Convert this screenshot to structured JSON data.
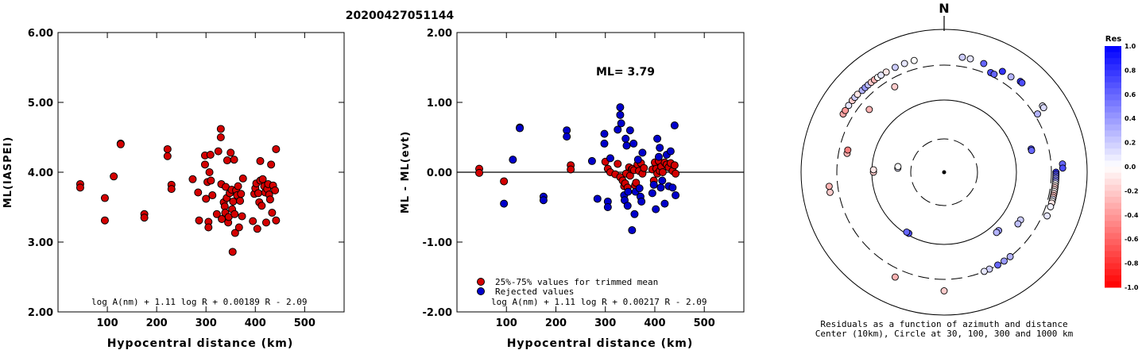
{
  "title": "20200427051144",
  "chart_data": [
    {
      "type": "scatter",
      "xlabel": "Hypocentral distance (km)",
      "ylabel": "ML(IASPEI)",
      "xlim": [
        0,
        580
      ],
      "ylim": [
        2.0,
        6.0
      ],
      "xticks": [
        "100",
        "200",
        "300",
        "400",
        "500"
      ],
      "yticks": [
        "2.00",
        "3.00",
        "4.00",
        "5.00",
        "6.00"
      ],
      "formula": "log A(nm) + 1.11 log R + 0.00189 R - 2.09",
      "series": [
        {
          "color": "#d40000",
          "points": [
            [
              45,
              3.83
            ],
            [
              45,
              3.78
            ],
            [
              95,
              3.63
            ],
            [
              95,
              3.31
            ],
            [
              113,
              3.94
            ],
            [
              127,
              4.41
            ],
            [
              127,
              4.4
            ],
            [
              175,
              3.4
            ],
            [
              175,
              3.35
            ],
            [
              222,
              4.33
            ],
            [
              222,
              4.23
            ],
            [
              230,
              3.82
            ],
            [
              230,
              3.76
            ],
            [
              273,
              3.9
            ],
            [
              284,
              3.71
            ],
            [
              286,
              3.31
            ],
            [
              298,
              4.24
            ],
            [
              298,
              4.11
            ],
            [
              300,
              3.62
            ],
            [
              303,
              3.86
            ],
            [
              305,
              3.29
            ],
            [
              305,
              3.21
            ],
            [
              307,
              4.0
            ],
            [
              309,
              4.25
            ],
            [
              310,
              3.88
            ],
            [
              313,
              3.67
            ],
            [
              322,
              3.4
            ],
            [
              325,
              4.3
            ],
            [
              330,
              4.62
            ],
            [
              330,
              4.5
            ],
            [
              331,
              3.83
            ],
            [
              332,
              3.33
            ],
            [
              336,
              3.57
            ],
            [
              338,
              3.51
            ],
            [
              339,
              3.42
            ],
            [
              340,
              3.79
            ],
            [
              342,
              3.63
            ],
            [
              343,
              4.17
            ],
            [
              345,
              3.28
            ],
            [
              346,
              3.36
            ],
            [
              348,
              3.7
            ],
            [
              350,
              4.28
            ],
            [
              352,
              3.75
            ],
            [
              353,
              3.47
            ],
            [
              354,
              2.86
            ],
            [
              355,
              3.58
            ],
            [
              357,
              4.18
            ],
            [
              358,
              3.4
            ],
            [
              359,
              3.13
            ],
            [
              361,
              3.74
            ],
            [
              363,
              3.67
            ],
            [
              365,
              3.8
            ],
            [
              367,
              3.21
            ],
            [
              369,
              3.59
            ],
            [
              371,
              3.69
            ],
            [
              373,
              3.37
            ],
            [
              375,
              3.91
            ],
            [
              395,
              3.3
            ],
            [
              398,
              3.69
            ],
            [
              400,
              3.77
            ],
            [
              402,
              3.84
            ],
            [
              404,
              3.19
            ],
            [
              406,
              3.7
            ],
            [
              408,
              3.57
            ],
            [
              410,
              3.88
            ],
            [
              410,
              4.16
            ],
            [
              413,
              3.52
            ],
            [
              415,
              3.9
            ],
            [
              418,
              3.8
            ],
            [
              420,
              3.71
            ],
            [
              422,
              3.28
            ],
            [
              424,
              3.76
            ],
            [
              426,
              3.83
            ],
            [
              428,
              3.68
            ],
            [
              430,
              3.61
            ],
            [
              432,
              4.11
            ],
            [
              434,
              3.42
            ],
            [
              436,
              3.81
            ],
            [
              440,
              3.74
            ],
            [
              442,
              4.33
            ],
            [
              442,
              3.31
            ]
          ]
        }
      ]
    },
    {
      "type": "scatter",
      "xlabel": "Hypocentral distance (km)",
      "ylabel": "ML - ML(evt)",
      "xlim": [
        0,
        580
      ],
      "ylim": [
        -2.0,
        2.0
      ],
      "xticks": [
        "100",
        "200",
        "300",
        "400",
        "500"
      ],
      "yticks": [
        "-2.00",
        "-1.00",
        "0.00",
        "1.00",
        "2.00"
      ],
      "annotation": "ML= 3.79",
      "formula": "log A(nm) + 1.11 log R + 0.00217 R - 2.09",
      "legend": [
        {
          "label": "25%-75% values for trimmed mean",
          "color": "#d40000"
        },
        {
          "label": "Rejected values",
          "color": "#0000cc"
        }
      ],
      "series": [
        {
          "color": "#d40000",
          "points": [
            [
              45,
              0.05
            ],
            [
              45,
              -0.01
            ],
            [
              95,
              -0.13
            ],
            [
              230,
              0.1
            ],
            [
              230,
              0.04
            ],
            [
              300,
              0.15
            ],
            [
              305,
              0.05
            ],
            [
              310,
              0.0
            ],
            [
              320,
              -0.03
            ],
            [
              325,
              0.12
            ],
            [
              330,
              -0.07
            ],
            [
              335,
              -0.12
            ],
            [
              338,
              -0.2
            ],
            [
              340,
              -0.16
            ],
            [
              342,
              -0.02
            ],
            [
              345,
              -0.22
            ],
            [
              348,
              0.07
            ],
            [
              350,
              -0.05
            ],
            [
              353,
              0.04
            ],
            [
              355,
              0.05
            ],
            [
              358,
              0.03
            ],
            [
              360,
              -0.19
            ],
            [
              362,
              -0.15
            ],
            [
              365,
              0.11
            ],
            [
              368,
              0.02
            ],
            [
              372,
              0.13
            ],
            [
              375,
              -0.02
            ],
            [
              378,
              0.06
            ],
            [
              395,
              0.04
            ],
            [
              398,
              -0.12
            ],
            [
              400,
              0.14
            ],
            [
              403,
              0.05
            ],
            [
              405,
              -0.02
            ],
            [
              408,
              0.16
            ],
            [
              410,
              0.02
            ],
            [
              413,
              0.08
            ],
            [
              416,
              0.0
            ],
            [
              420,
              0.14
            ],
            [
              424,
              0.11
            ],
            [
              428,
              0.07
            ],
            [
              432,
              0.13
            ],
            [
              436,
              0.02
            ],
            [
              440,
              0.1
            ],
            [
              442,
              -0.02
            ]
          ]
        },
        {
          "color": "#0000cc",
          "points": [
            [
              95,
              -0.45
            ],
            [
              113,
              0.18
            ],
            [
              127,
              0.64
            ],
            [
              127,
              0.63
            ],
            [
              175,
              -0.35
            ],
            [
              175,
              -0.4
            ],
            [
              222,
              0.6
            ],
            [
              222,
              0.51
            ],
            [
              273,
              0.16
            ],
            [
              284,
              -0.38
            ],
            [
              298,
              0.55
            ],
            [
              298,
              0.41
            ],
            [
              305,
              -0.42
            ],
            [
              305,
              -0.5
            ],
            [
              310,
              0.2
            ],
            [
              325,
              0.61
            ],
            [
              330,
              0.93
            ],
            [
              330,
              0.82
            ],
            [
              332,
              0.7
            ],
            [
              338,
              -0.33
            ],
            [
              339,
              -0.4
            ],
            [
              341,
              0.48
            ],
            [
              343,
              0.38
            ],
            [
              345,
              -0.48
            ],
            [
              346,
              -0.28
            ],
            [
              350,
              0.6
            ],
            [
              354,
              -0.83
            ],
            [
              357,
              0.41
            ],
            [
              359,
              -0.6
            ],
            [
              361,
              -0.28
            ],
            [
              366,
              0.18
            ],
            [
              369,
              -0.23
            ],
            [
              371,
              -0.35
            ],
            [
              373,
              -0.42
            ],
            [
              375,
              0.28
            ],
            [
              395,
              -0.3
            ],
            [
              398,
              -0.18
            ],
            [
              402,
              -0.53
            ],
            [
              405,
              0.48
            ],
            [
              408,
              0.22
            ],
            [
              410,
              0.35
            ],
            [
              412,
              -0.22
            ],
            [
              415,
              -0.12
            ],
            [
              420,
              -0.45
            ],
            [
              424,
              0.25
            ],
            [
              428,
              -0.2
            ],
            [
              432,
              0.3
            ],
            [
              436,
              -0.22
            ],
            [
              440,
              0.67
            ],
            [
              442,
              -0.33
            ]
          ]
        }
      ]
    },
    {
      "type": "scatter",
      "subtype": "polar",
      "north_label": "N",
      "caption": [
        "Residuals as a function of azimuth and distance",
        "Center (10km), Circle at 30, 100, 300 and 1000 km"
      ],
      "colorbar": {
        "title": "Res",
        "ticks": [
          "1.0",
          "0.8",
          "0.6",
          "0.4",
          "0.2",
          "0.0",
          "-0.2",
          "-0.4",
          "-0.6",
          "-0.8",
          "-1.0"
        ],
        "range": [
          -1.0,
          1.0
        ]
      },
      "rings_km": [
        30,
        100,
        300,
        1000
      ],
      "points": [
        [
          25,
          330,
          0.7
        ],
        [
          27,
          330,
          0.6
        ],
        [
          40,
          440,
          0.8
        ],
        [
          41,
          440,
          0.7
        ],
        [
          56,
          440,
          0.1
        ],
        [
          57,
          440,
          0.15
        ],
        [
          58,
          330,
          0.3
        ],
        [
          75,
          175,
          0.7
        ],
        [
          76,
          175,
          0.6
        ],
        [
          86,
          440,
          0.6
        ],
        [
          88,
          440,
          0.7
        ],
        [
          90,
          350,
          0.8
        ],
        [
          91,
          350,
          0.7
        ],
        [
          92,
          350,
          0.6
        ],
        [
          93,
          350,
          0.4
        ],
        [
          94,
          350,
          0.5
        ],
        [
          95,
          350,
          0.3
        ],
        [
          96,
          350,
          0.0
        ],
        [
          97,
          350,
          -0.1
        ],
        [
          98,
          350,
          -0.2
        ],
        [
          99,
          350,
          -0.1
        ],
        [
          100,
          350,
          0.0
        ],
        [
          101,
          350,
          -0.15
        ],
        [
          102,
          350,
          -0.25
        ],
        [
          103,
          350,
          -0.2
        ],
        [
          104,
          350,
          0.1
        ],
        [
          105,
          350,
          0.0
        ],
        [
          106,
          350,
          -0.1
        ],
        [
          108,
          350,
          0.05
        ],
        [
          113,
          350,
          0.1
        ],
        [
          122,
          175,
          0.2
        ],
        [
          125,
          175,
          0.25
        ],
        [
          137,
          127,
          0.4
        ],
        [
          139,
          127,
          0.3
        ],
        [
          142,
          300,
          0.3
        ],
        [
          146,
          300,
          0.4
        ],
        [
          150,
          300,
          0.6
        ],
        [
          155,
          298,
          0.2
        ],
        [
          158,
          298,
          0.1
        ],
        [
          180,
          442,
          -0.2
        ],
        [
          205,
          400,
          -0.3
        ],
        [
          210,
          95,
          0.7
        ],
        [
          212,
          95,
          0.6
        ],
        [
          260,
          400,
          -0.2
        ],
        [
          263,
          400,
          -0.3
        ],
        [
          270,
          95,
          -0.2
        ],
        [
          272,
          95,
          -0.1
        ],
        [
          275,
          45,
          0.1
        ],
        [
          277,
          45,
          0.0
        ],
        [
          281,
          230,
          -0.3
        ],
        [
          283,
          230,
          -0.5
        ],
        [
          300,
          410,
          -0.35
        ],
        [
          302,
          410,
          -0.4
        ],
        [
          305,
          410,
          0.1
        ],
        [
          308,
          410,
          -0.2
        ],
        [
          310,
          410,
          0.2
        ],
        [
          312,
          410,
          -0.1
        ],
        [
          315,
          400,
          0.3
        ],
        [
          317,
          400,
          0.4
        ],
        [
          319,
          400,
          0.25
        ],
        [
          321,
          400,
          -0.2
        ],
        [
          323,
          400,
          -0.3
        ],
        [
          325,
          400,
          0.0
        ],
        [
          327,
          400,
          0.1
        ],
        [
          330,
          400,
          -0.1
        ],
        [
          335,
          400,
          0.2
        ],
        [
          340,
          400,
          0.1
        ],
        [
          345,
          400,
          0.0
        ],
        [
          310,
          222,
          -0.3
        ],
        [
          330,
          230,
          -0.2
        ],
        [
          20,
          400,
          0.6
        ],
        [
          30,
          410,
          0.8
        ],
        [
          35,
          410,
          0.3
        ],
        [
          13,
          410,
          0.1
        ],
        [
          9,
          410,
          0.2
        ]
      ]
    }
  ]
}
